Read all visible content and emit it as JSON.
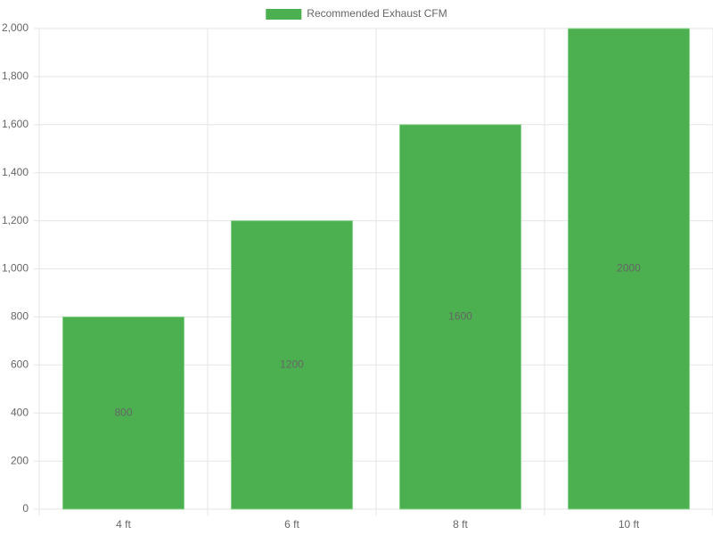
{
  "chart_data": {
    "type": "bar",
    "categories": [
      "4 ft",
      "6 ft",
      "8 ft",
      "10 ft"
    ],
    "series": [
      {
        "name": "Recommended Exhaust CFM",
        "color": "#4caf50",
        "values": [
          800,
          1200,
          1600,
          2000
        ]
      }
    ],
    "ylim": [
      0,
      2000
    ],
    "yticks": [
      0,
      200,
      400,
      600,
      800,
      {
        "value": 1000,
        "label": "1,000"
      },
      {
        "value": 1200,
        "label": "1,200"
      },
      {
        "value": 1400,
        "label": "1,400"
      },
      {
        "value": 1600,
        "label": "1,600"
      },
      {
        "value": 1800,
        "label": "1,800"
      },
      {
        "value": 2000,
        "label": "2,000"
      }
    ],
    "grid": true,
    "legend": "top"
  }
}
